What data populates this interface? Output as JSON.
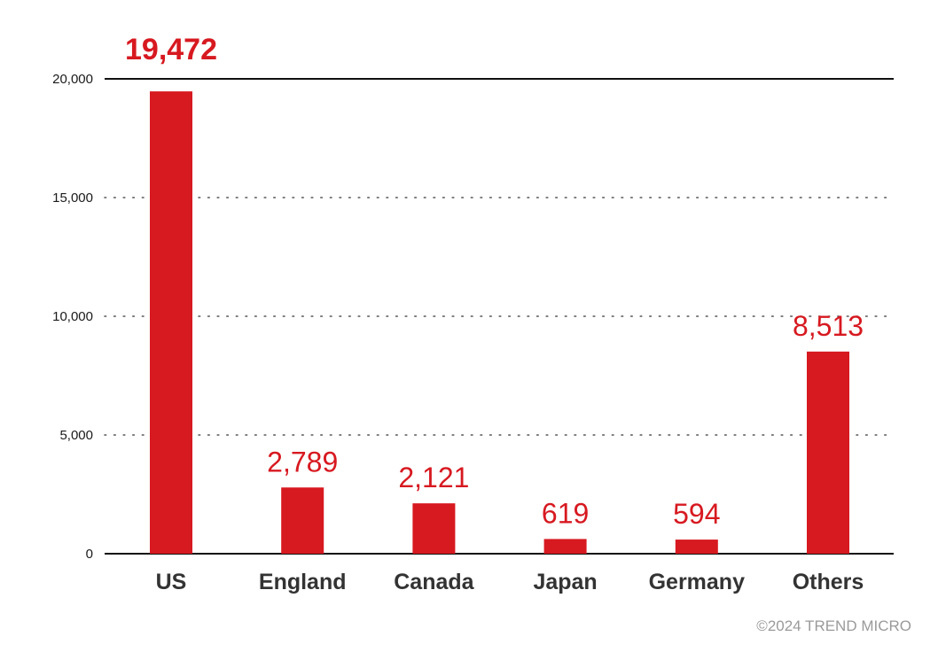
{
  "chart_data": {
    "type": "bar",
    "categories": [
      "US",
      "England",
      "Canada",
      "Japan",
      "Germany",
      "Others"
    ],
    "values": [
      19472,
      2789,
      2121,
      619,
      594,
      8513
    ],
    "data_labels": [
      "19,472",
      "2,789",
      "2,121",
      "619",
      "594",
      "8,513"
    ],
    "highlight_index": 0,
    "title": "",
    "xlabel": "",
    "ylabel": "",
    "ylim": [
      0,
      20000
    ],
    "yticks": [
      0,
      5000,
      10000,
      15000,
      20000
    ],
    "ytick_labels": [
      "0",
      "5,000",
      "10,000",
      "15,000",
      "20,000"
    ],
    "grid": "horizontal dotted",
    "bar_color": "#d71920",
    "label_color": "#d71920"
  },
  "credit": "©2024 TREND MICRO"
}
